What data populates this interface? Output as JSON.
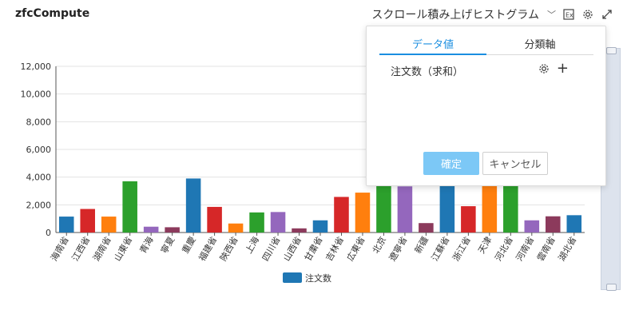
{
  "app": {
    "title": "zfcCompute",
    "chart_type_label": "スクロール積み上げヒストグラム",
    "icons": [
      "excel-export-icon",
      "gear-icon",
      "expand-icon"
    ]
  },
  "panel": {
    "tabs": [
      {
        "label": "データ値",
        "active": true
      },
      {
        "label": "分類軸",
        "active": false
      }
    ],
    "field_label": "注文数（求和）",
    "confirm_label": "確定",
    "cancel_label": "キャンセル"
  },
  "chart_data": {
    "type": "bar",
    "categories": [
      "海南省",
      "江西省",
      "湖南省",
      "山東省",
      "青海",
      "寧夏",
      "重慶",
      "福建省",
      "陝西省",
      "上海",
      "四川省",
      "山西省",
      "甘粛省",
      "吉林省",
      "広東省",
      "北京",
      "遼寧省",
      "新疆",
      "江蘇省",
      "浙江省",
      "天津",
      "河北省",
      "河南省",
      "雲南省",
      "湖北省"
    ],
    "values": [
      1150,
      1700,
      1150,
      3700,
      420,
      380,
      3900,
      1850,
      650,
      1450,
      1480,
      300,
      880,
      2570,
      2880,
      3430,
      3330,
      680,
      3430,
      1900,
      3430,
      3430,
      880,
      1170,
      1250
    ],
    "colors": [
      "#1f77b4",
      "#d62728",
      "#ff7f0e",
      "#2ca02c",
      "#9467bd",
      "#8c3a5c",
      "#1f77b4",
      "#d62728",
      "#ff7f0e",
      "#2ca02c",
      "#9467bd",
      "#8c3a5c",
      "#1f77b4",
      "#d62728",
      "#ff7f0e",
      "#2ca02c",
      "#9467bd",
      "#8c3a5c",
      "#1f77b4",
      "#d62728",
      "#ff7f0e",
      "#2ca02c",
      "#9467bd",
      "#8c3a5c",
      "#1f77b4"
    ],
    "yticks": [
      "0",
      "2,000",
      "4,000",
      "6,000",
      "8,000",
      "10,000",
      "12,000"
    ],
    "ylim": [
      0,
      12000
    ],
    "series": [
      {
        "name": "注文数"
      }
    ],
    "legend_color": "#1f77b4",
    "grid": true,
    "legend": "bottom"
  }
}
